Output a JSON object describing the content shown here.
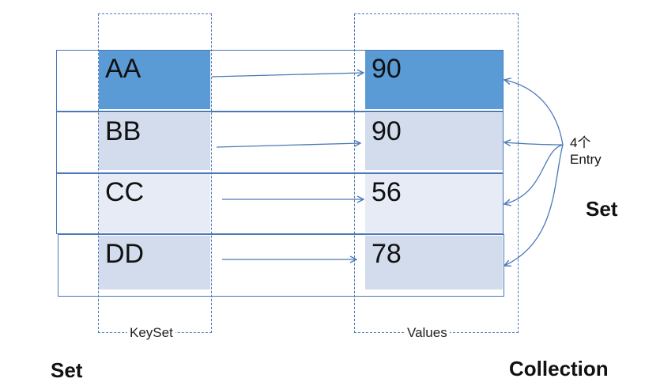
{
  "rows": [
    {
      "key": "AA",
      "value": "90"
    },
    {
      "key": "BB",
      "value": "90"
    },
    {
      "key": "CC",
      "value": "56"
    },
    {
      "key": "DD",
      "value": "78"
    }
  ],
  "keyset_label": "KeySet",
  "values_label": "Values",
  "entry_count_label": "4个",
  "entry_label": "Entry",
  "entry_set_label": "Set",
  "keyset_type_label": "Set",
  "values_type_label": "Collection",
  "colors": {
    "line": "#4a78b8",
    "first_row_fill": "#5b9bd5",
    "dark_fill": "#d2dcec",
    "light_fill": "#e6ebf5"
  }
}
